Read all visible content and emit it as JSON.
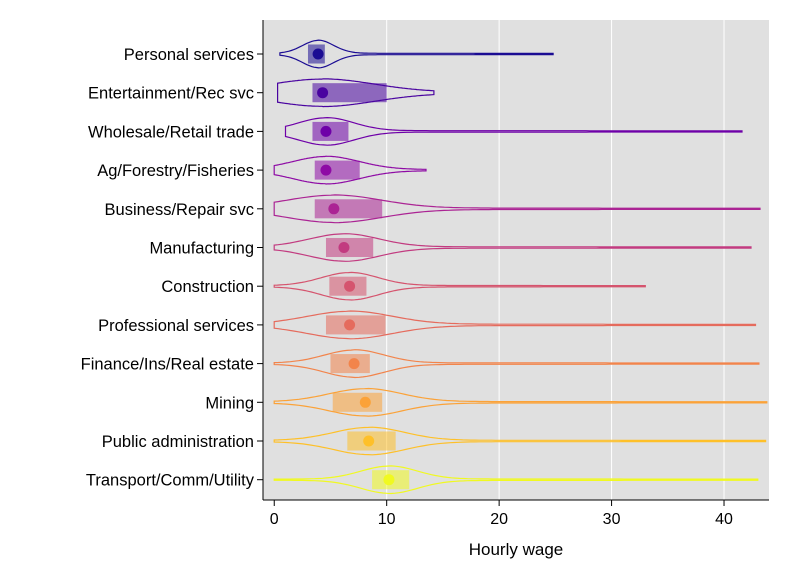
{
  "chart_data": {
    "type": "violin",
    "xlabel": "Hourly wage",
    "xlim": [
      -1,
      44
    ],
    "x_ticks": [
      0,
      10,
      20,
      30,
      40
    ],
    "x_tick_labels": [
      "0",
      "10",
      "20",
      "30",
      "40"
    ],
    "grid": true,
    "background": "#e0e0e0",
    "colormap": "plasma",
    "categories": [
      {
        "label": "Personal services",
        "color": "#1b0c93",
        "min": 0.5,
        "q1": 3.0,
        "median": 3.9,
        "q3": 4.5,
        "max": 24.8
      },
      {
        "label": "Entertainment/Rec svc",
        "color": "#4903a0",
        "min": 0.3,
        "q1": 3.4,
        "median": 4.3,
        "q3": 10.0,
        "max": 14.2
      },
      {
        "label": "Wholesale/Retail trade",
        "color": "#6e00a8",
        "min": 1.0,
        "q1": 3.4,
        "median": 4.6,
        "q3": 6.6,
        "max": 41.6
      },
      {
        "label": "Ag/Forestry/Fisheries",
        "color": "#8e0ba5",
        "min": 0.0,
        "q1": 3.6,
        "median": 4.6,
        "q3": 7.6,
        "max": 13.5
      },
      {
        "label": "Business/Repair svc",
        "color": "#ab2494",
        "min": 0.0,
        "q1": 3.6,
        "median": 5.3,
        "q3": 9.6,
        "max": 43.2
      },
      {
        "label": "Manufacturing",
        "color": "#c23b80",
        "min": 0.0,
        "q1": 4.6,
        "median": 6.2,
        "q3": 8.8,
        "max": 42.4
      },
      {
        "label": "Construction",
        "color": "#d5546e",
        "min": 0.0,
        "q1": 4.9,
        "median": 6.7,
        "q3": 8.2,
        "max": 33.0
      },
      {
        "label": "Professional services",
        "color": "#e56b5d",
        "min": 0.0,
        "q1": 4.6,
        "median": 6.7,
        "q3": 9.9,
        "max": 42.8
      },
      {
        "label": "Finance/Ins/Real estate",
        "color": "#f2844b",
        "min": 0.0,
        "q1": 5.0,
        "median": 7.1,
        "q3": 8.5,
        "max": 43.1
      },
      {
        "label": "Mining",
        "color": "#fba238",
        "min": 0.0,
        "q1": 5.2,
        "median": 8.1,
        "q3": 9.6,
        "max": 43.8
      },
      {
        "label": "Public administration",
        "color": "#fec029",
        "min": 0.0,
        "q1": 6.5,
        "median": 8.4,
        "q3": 10.8,
        "max": 43.7
      },
      {
        "label": "Transport/Comm/Utility",
        "color": "#f0f921",
        "min": 0.0,
        "q1": 8.7,
        "median": 10.2,
        "q3": 12.0,
        "max": 43.0
      }
    ]
  }
}
